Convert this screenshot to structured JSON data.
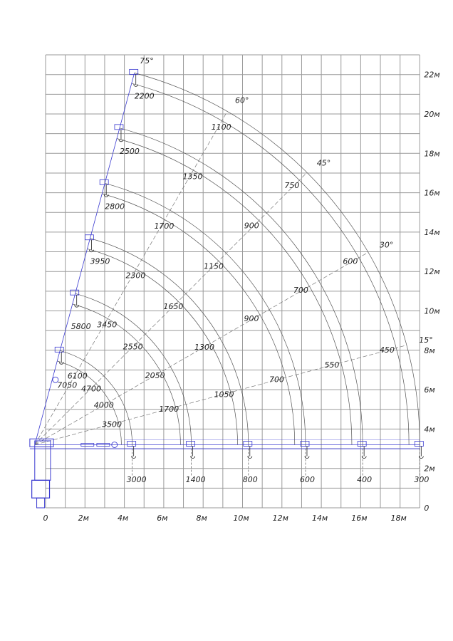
{
  "chart_data": {
    "type": "diagram-load-chart",
    "title": "",
    "x_axis": {
      "range": [
        0,
        19
      ],
      "unit": "м",
      "grid_step": 1,
      "ticks": [
        "0",
        "2м",
        "4м",
        "6м",
        "8м",
        "10м",
        "12м",
        "14м",
        "16м",
        "18м"
      ]
    },
    "y_axis": {
      "range": [
        0,
        23
      ],
      "unit": "м",
      "grid_step": 1,
      "position": "right",
      "ticks": [
        "0",
        "2м",
        "4м",
        "6м",
        "8м",
        "10м",
        "12м",
        "14м",
        "16м",
        "18м",
        "20м",
        "22м"
      ]
    },
    "grid": true,
    "boom_angles": [
      {
        "angle": 0,
        "label": ""
      },
      {
        "angle": 15,
        "label": "15°"
      },
      {
        "angle": 30,
        "label": "30°"
      },
      {
        "angle": 45,
        "label": "45°"
      },
      {
        "angle": 60,
        "label": "60°"
      },
      {
        "angle": 75,
        "label": "75°"
      }
    ],
    "hook_reach_at_0deg_m": [
      4.4,
      7.4,
      10.3,
      13.2,
      16.1,
      19.0
    ],
    "loads": {
      "0": [
        "3000",
        "1400",
        "800",
        "600",
        "400",
        "300"
      ],
      "15": [
        "3500",
        "1700",
        "1050",
        "700",
        "550",
        "450"
      ],
      "30": [
        "4000",
        "2050",
        "1300",
        "900",
        "700",
        "600"
      ],
      "45": [
        "4700",
        "2550",
        "1650",
        "1150",
        "900",
        "750"
      ],
      "60": [
        "6100",
        "3450",
        "2300",
        "1700",
        "1350",
        "1100"
      ],
      "75": [
        "7050",
        "5800",
        "3950",
        "2800",
        "2500",
        "2200"
      ]
    },
    "colors": {
      "grid": "#9a9a9a",
      "arcs": "#555555",
      "crane": "#3a3ad0",
      "text": "#222222"
    }
  }
}
